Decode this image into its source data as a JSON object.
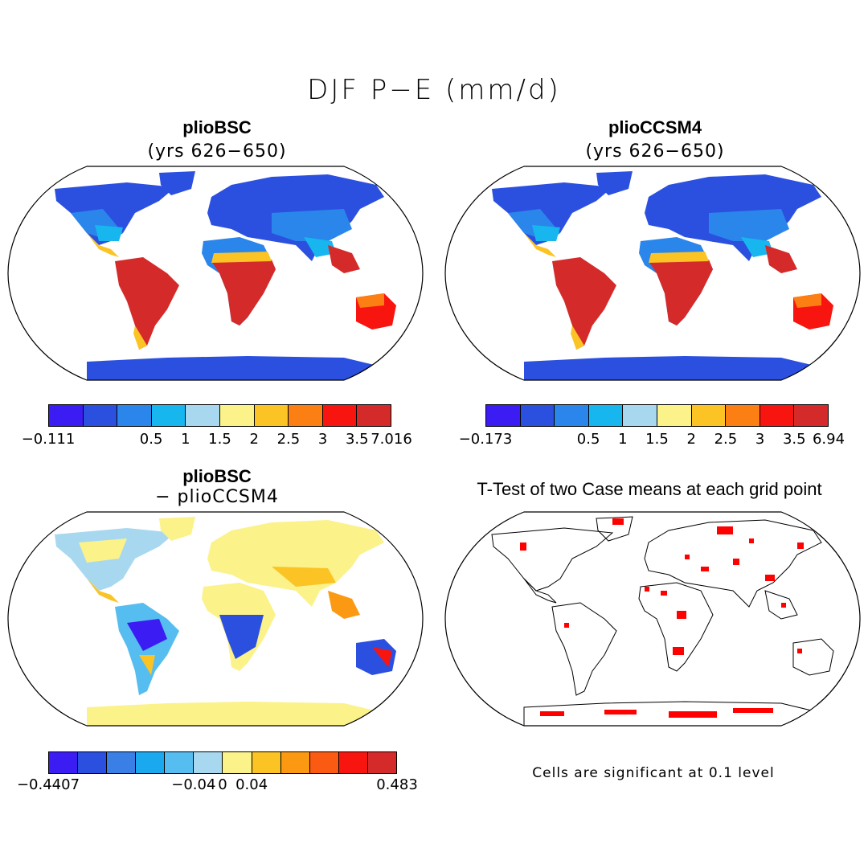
{
  "figure": {
    "title": "DJF P−E (mm/d)",
    "panels": [
      {
        "id": "top-left",
        "title": "plioBSC",
        "subtitle": "(yrs 626−650)",
        "colorbar": {
          "colors": [
            "#3b1cf2",
            "#2b50e0",
            "#2a86ea",
            "#17b6ef",
            "#a8d8ef",
            "#fbf28a",
            "#fbc324",
            "#fb7f12",
            "#f81510",
            "#d42a2a"
          ],
          "labels": [
            "−0.111",
            "0.5",
            "1",
            "1.5",
            "2",
            "2.5",
            "3",
            "3.5",
            "7.016"
          ]
        }
      },
      {
        "id": "top-right",
        "title": "plioCCSM4",
        "subtitle": "(yrs 626−650)",
        "colorbar": {
          "colors": [
            "#3b1cf2",
            "#2b50e0",
            "#2a86ea",
            "#17b6ef",
            "#a8d8ef",
            "#fbf28a",
            "#fbc324",
            "#fb7f12",
            "#f81510",
            "#d42a2a"
          ],
          "labels": [
            "−0.173",
            "0.5",
            "1",
            "1.5",
            "2",
            "2.5",
            "3",
            "3.5",
            "6.94"
          ]
        }
      },
      {
        "id": "bottom-left",
        "title": "plioBSC",
        "subtitle": "− plioCCSM4",
        "colorbar": {
          "colors": [
            "#3b1cf2",
            "#2b50e0",
            "#3a7fe6",
            "#1aa8ee",
            "#55bdf0",
            "#a8d8ef",
            "#fbf28a",
            "#fbc324",
            "#fb9a12",
            "#fb5a12",
            "#f81510",
            "#d42a2a"
          ],
          "labels": [
            "−0.4407",
            "−0.04",
            "0",
            "0.04",
            "0.483"
          ]
        }
      },
      {
        "id": "bottom-right",
        "title": "T-Test of two Case means at each grid point",
        "note": "Cells are significant at 0.1 level"
      }
    ]
  }
}
